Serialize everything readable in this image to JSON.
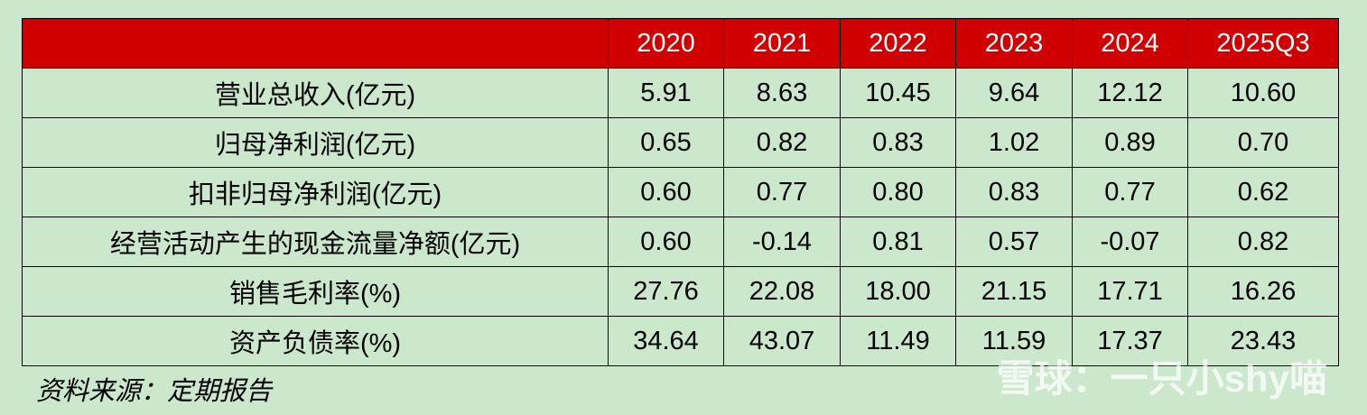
{
  "table": {
    "columns": [
      "2020",
      "2021",
      "2022",
      "2023",
      "2024",
      "2025Q3"
    ],
    "rows": [
      {
        "label": "营业总收入(亿元)",
        "cells": [
          "5.91",
          "8.63",
          "10.45",
          "9.64",
          "12.12",
          "10.60"
        ]
      },
      {
        "label": "归母净利润(亿元)",
        "cells": [
          "0.65",
          "0.82",
          "0.83",
          "1.02",
          "0.89",
          "0.70"
        ]
      },
      {
        "label": "扣非归母净利润(亿元)",
        "cells": [
          "0.60",
          "0.77",
          "0.80",
          "0.83",
          "0.77",
          "0.62"
        ]
      },
      {
        "label": "经营活动产生的现金流量净额(亿元)",
        "cells": [
          "0.60",
          "-0.14",
          "0.81",
          "0.57",
          "-0.07",
          "0.82"
        ]
      },
      {
        "label": "销售毛利率(%)",
        "cells": [
          "27.76",
          "22.08",
          "18.00",
          "21.15",
          "17.71",
          "16.26"
        ]
      },
      {
        "label": "资产负债率(%)",
        "cells": [
          "34.64",
          "43.07",
          "11.49",
          "11.59",
          "17.37",
          "23.43"
        ]
      }
    ]
  },
  "footnote": "资料来源：定期报告",
  "watermark": "雪球：一只小shy喵"
}
